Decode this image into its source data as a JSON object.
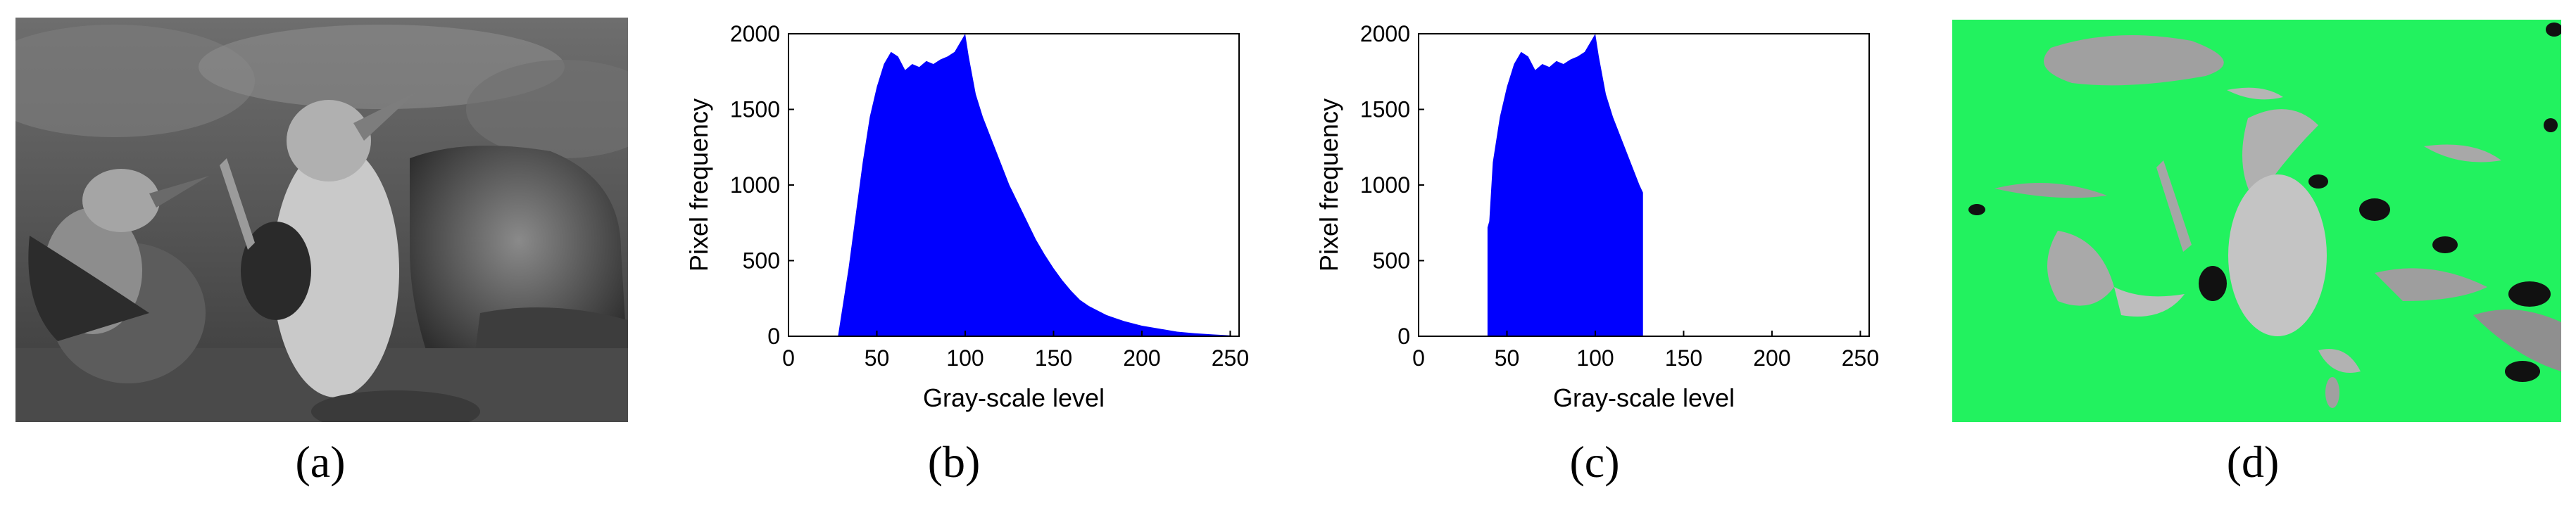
{
  "panels": {
    "a": {
      "label": "(a)",
      "image": "grayscale photograph of two blue-footed booby birds on rocks"
    },
    "b": {
      "label": "(b)"
    },
    "c": {
      "label": "(c)"
    },
    "d": {
      "label": "(d)",
      "image": "segmentation overlay in bright green over the grayscale photograph"
    }
  },
  "colors": {
    "bars": "#0000ff",
    "overlay": "#22f25f",
    "axis": "#000000"
  },
  "chart_data": [
    {
      "id": "b",
      "type": "bar",
      "title": "",
      "xlabel": "Gray-scale level",
      "ylabel": "Pixel frequency",
      "xlim": [
        0,
        255
      ],
      "ylim": [
        0,
        2000
      ],
      "xticks": [
        "0",
        "50",
        "100",
        "150",
        "200",
        "250"
      ],
      "yticks": [
        "0",
        "500",
        "1000",
        "1500",
        "2000"
      ],
      "grid": false,
      "profile": [
        [
          28,
          0
        ],
        [
          30,
          150
        ],
        [
          34,
          450
        ],
        [
          38,
          800
        ],
        [
          42,
          1150
        ],
        [
          46,
          1450
        ],
        [
          50,
          1650
        ],
        [
          54,
          1800
        ],
        [
          58,
          1880
        ],
        [
          62,
          1850
        ],
        [
          66,
          1760
        ],
        [
          70,
          1800
        ],
        [
          74,
          1780
        ],
        [
          78,
          1820
        ],
        [
          82,
          1800
        ],
        [
          86,
          1830
        ],
        [
          90,
          1850
        ],
        [
          94,
          1880
        ],
        [
          98,
          1960
        ],
        [
          100,
          2000
        ],
        [
          102,
          1850
        ],
        [
          106,
          1600
        ],
        [
          110,
          1450
        ],
        [
          115,
          1300
        ],
        [
          120,
          1150
        ],
        [
          125,
          1000
        ],
        [
          130,
          880
        ],
        [
          135,
          760
        ],
        [
          140,
          640
        ],
        [
          145,
          540
        ],
        [
          150,
          450
        ],
        [
          155,
          370
        ],
        [
          160,
          300
        ],
        [
          165,
          240
        ],
        [
          170,
          200
        ],
        [
          175,
          170
        ],
        [
          180,
          140
        ],
        [
          185,
          120
        ],
        [
          190,
          100
        ],
        [
          195,
          85
        ],
        [
          200,
          70
        ],
        [
          210,
          50
        ],
        [
          220,
          30
        ],
        [
          230,
          20
        ],
        [
          240,
          12
        ],
        [
          250,
          6
        ],
        [
          255,
          0
        ]
      ]
    },
    {
      "id": "c",
      "type": "bar",
      "title": "",
      "xlabel": "Gray-scale level",
      "ylabel": "Pixel frequency",
      "xlim": [
        0,
        255
      ],
      "ylim": [
        0,
        2000
      ],
      "xticks": [
        "0",
        "50",
        "100",
        "150",
        "200",
        "250"
      ],
      "yticks": [
        "0",
        "500",
        "1000",
        "1500",
        "2000"
      ],
      "grid": false,
      "profile": [
        [
          39,
          0
        ],
        [
          39,
          720
        ],
        [
          40,
          760
        ],
        [
          42,
          1150
        ],
        [
          46,
          1450
        ],
        [
          50,
          1650
        ],
        [
          54,
          1800
        ],
        [
          58,
          1880
        ],
        [
          62,
          1850
        ],
        [
          66,
          1760
        ],
        [
          70,
          1800
        ],
        [
          74,
          1780
        ],
        [
          78,
          1820
        ],
        [
          82,
          1800
        ],
        [
          86,
          1830
        ],
        [
          90,
          1850
        ],
        [
          94,
          1880
        ],
        [
          98,
          1960
        ],
        [
          100,
          2000
        ],
        [
          102,
          1850
        ],
        [
          106,
          1600
        ],
        [
          110,
          1450
        ],
        [
          115,
          1300
        ],
        [
          120,
          1150
        ],
        [
          125,
          1000
        ],
        [
          127,
          950
        ],
        [
          127,
          0
        ]
      ]
    }
  ]
}
